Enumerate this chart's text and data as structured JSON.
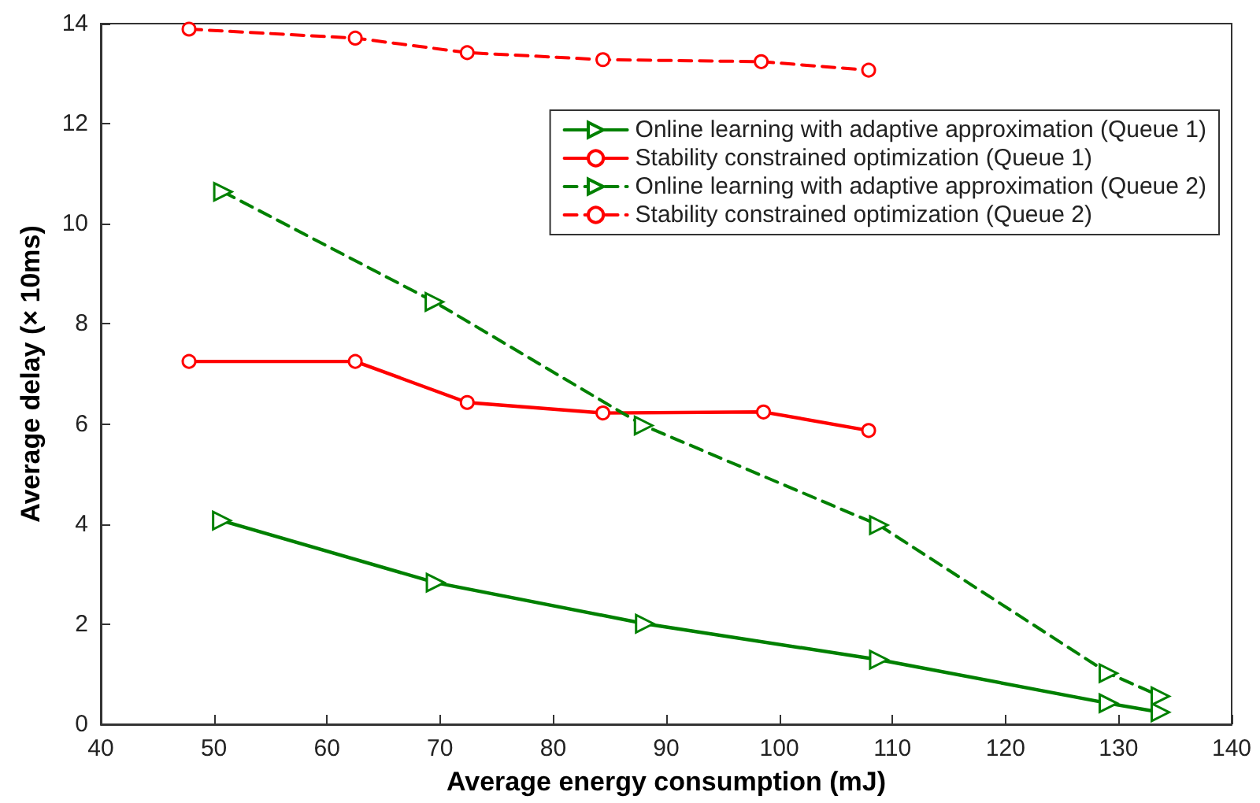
{
  "chart_data": {
    "type": "line",
    "xlabel": "Average energy consumption (mJ)",
    "ylabel": "Average delay (× 10ms)",
    "xlim": [
      40,
      140
    ],
    "xticks": [
      40,
      50,
      60,
      70,
      80,
      90,
      100,
      110,
      120,
      130,
      140
    ],
    "ylim": [
      0,
      14
    ],
    "yticks": [
      0,
      2,
      4,
      6,
      8,
      10,
      12,
      14
    ],
    "grid": false,
    "legend": "top right",
    "series": [
      {
        "name": "Online learning with adaptive approximation (Queue 1)",
        "color": "#008000",
        "marker": "triangle",
        "line_style": "solid",
        "x": [
          50.7,
          69.6,
          88.1,
          108.8,
          129.1,
          133.7
        ],
        "values": [
          4.07,
          2.83,
          2.01,
          1.29,
          0.42,
          0.24
        ]
      },
      {
        "name": "Stability constrained optimization (Queue 1)",
        "color": "#ff0000",
        "marker": "circle",
        "line_style": "solid",
        "x": [
          47.8,
          62.5,
          72.4,
          84.4,
          98.6,
          107.9
        ],
        "values": [
          7.25,
          7.25,
          6.43,
          6.22,
          6.24,
          5.87
        ]
      },
      {
        "name": "Online learning with adaptive approximation (Queue 2)",
        "color": "#008000",
        "marker": "triangle",
        "line_style": "dashed",
        "x": [
          50.8,
          69.5,
          88.0,
          108.8,
          129.1,
          133.7
        ],
        "values": [
          10.64,
          8.44,
          5.97,
          3.98,
          1.02,
          0.56
        ]
      },
      {
        "name": "Stability constrained optimization (Queue 2)",
        "color": "#ff0000",
        "marker": "circle",
        "line_style": "dashed",
        "x": [
          47.8,
          62.5,
          72.4,
          84.4,
          98.4,
          107.9
        ],
        "values": [
          13.89,
          13.71,
          13.42,
          13.28,
          13.24,
          13.07
        ]
      }
    ]
  }
}
